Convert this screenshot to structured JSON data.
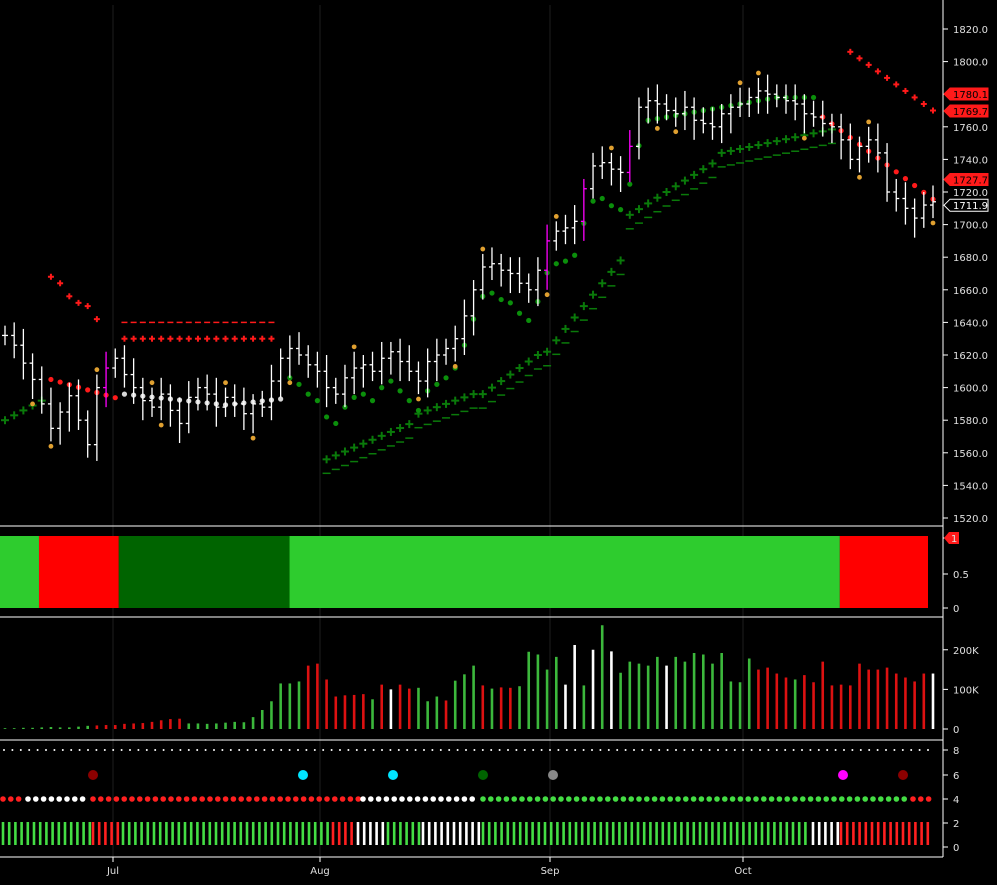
{
  "chart_data": [
    {
      "type": "ohlc",
      "panel": "price",
      "x_labels": [
        "Jul",
        "Aug",
        "Sep",
        "Oct"
      ],
      "y_ticks": [
        "1520.0",
        "1540.0",
        "1560.0",
        "1580.0",
        "1600.0",
        "1620.0",
        "1640.0",
        "1660.0",
        "1680.0",
        "1700.0",
        "1720.0",
        "1740.0",
        "1760.0",
        "1780.0",
        "1800.0",
        "1820.0"
      ],
      "ylim": [
        1512,
        1832
      ],
      "price_tags": [
        {
          "text": "1780.1",
          "value": 1780.1,
          "color": "#ff1a1a"
        },
        {
          "text": "1769.7",
          "value": 1769.7,
          "color": "#ff1a1a"
        },
        {
          "text": "1727.7",
          "value": 1727.7,
          "color": "#ff1a1a"
        },
        {
          "text": "1711.9",
          "value": 1711.9,
          "color": "#000000"
        }
      ],
      "colors": {
        "bar": "#ffffff",
        "ribbon_green": "#0a7a0a",
        "ribbon_red": "#ff1a1a",
        "highlight": "#ff00ff",
        "pivot": "#e0a030"
      },
      "closes": [
        1632,
        1626,
        1615,
        1605,
        1590,
        1575,
        1585,
        1595,
        1580,
        1565,
        1600,
        1612,
        1618,
        1608,
        1600,
        1592,
        1588,
        1596,
        1586,
        1578,
        1594,
        1600,
        1596,
        1588,
        1594,
        1590,
        1584,
        1590,
        1588,
        1604,
        1618,
        1624,
        1620,
        1614,
        1610,
        1600,
        1596,
        1606,
        1612,
        1614,
        1610,
        1618,
        1622,
        1616,
        1610,
        1604,
        1616,
        1620,
        1624,
        1630,
        1644,
        1660,
        1674,
        1676,
        1672,
        1670,
        1664,
        1660,
        1672,
        1690,
        1696,
        1698,
        1702,
        1722,
        1736,
        1738,
        1734,
        1732,
        1748,
        1772,
        1776,
        1774,
        1770,
        1768,
        1772,
        1764,
        1762,
        1760,
        1768,
        1772,
        1774,
        1778,
        1782,
        1780,
        1778,
        1776,
        1774,
        1768,
        1766,
        1762,
        1760,
        1752,
        1740,
        1748,
        1752,
        1744,
        1720,
        1716,
        1710,
        1704,
        1712,
        1714
      ]
    },
    {
      "type": "heatmap",
      "panel": "trend",
      "y_ticks": [
        "1",
        "0.5",
        "0"
      ],
      "segments": [
        {
          "start": 0.0,
          "end": 0.042,
          "color": "#2ecc2e"
        },
        {
          "start": 0.042,
          "end": 0.128,
          "color": "#ff0000"
        },
        {
          "start": 0.128,
          "end": 0.312,
          "color": "#006400"
        },
        {
          "start": 0.312,
          "end": 0.905,
          "color": "#2ecc2e"
        },
        {
          "start": 0.905,
          "end": 1.0,
          "color": "#ff0000"
        }
      ]
    },
    {
      "type": "bar",
      "panel": "volume",
      "y_ticks": [
        "200K",
        "100K",
        "0"
      ],
      "ylim": [
        0,
        260000
      ],
      "values": [
        2000,
        2000,
        3000,
        3000,
        4000,
        5000,
        4000,
        4000,
        6000,
        8000,
        9000,
        10000,
        10000,
        13000,
        14000,
        15000,
        18000,
        22000,
        25000,
        26000,
        14000,
        14000,
        13000,
        14000,
        16000,
        18000,
        17000,
        30000,
        48000,
        70000,
        115000,
        115000,
        120000,
        160000,
        165000,
        125000,
        82000,
        85000,
        86000,
        88000,
        75000,
        112000,
        100000,
        112000,
        102000,
        104000,
        70000,
        82000,
        72000,
        122000,
        138000,
        160000,
        110000,
        102000,
        105000,
        104000,
        108000,
        195000,
        188000,
        150000,
        182000,
        112000,
        212000,
        110000,
        200000,
        262000,
        196000,
        142000,
        170000,
        165000,
        160000,
        182000,
        160000,
        182000,
        170000,
        192000,
        188000,
        165000,
        192000,
        120000,
        118000,
        178000,
        150000,
        155000,
        140000,
        130000,
        125000,
        136000,
        118000,
        170000,
        110000,
        112000,
        110000,
        165000,
        150000,
        150000,
        155000,
        140000,
        130000,
        120000,
        140000,
        140000
      ],
      "colors": [
        "green",
        "green",
        "green",
        "green",
        "green",
        "green",
        "green",
        "green",
        "green",
        "green",
        "red",
        "red",
        "red",
        "red",
        "red",
        "red",
        "red",
        "red",
        "red",
        "red",
        "green",
        "green",
        "green",
        "green",
        "green",
        "green",
        "green",
        "green",
        "green",
        "green",
        "green",
        "green",
        "green",
        "red",
        "red",
        "red",
        "red",
        "red",
        "red",
        "red",
        "green",
        "red",
        "white",
        "red",
        "red",
        "green",
        "green",
        "green",
        "red",
        "green",
        "green",
        "green",
        "red",
        "green",
        "red",
        "red",
        "green",
        "green",
        "green",
        "green",
        "green",
        "white",
        "white",
        "green",
        "white",
        "green",
        "white",
        "green",
        "green",
        "green",
        "green",
        "green",
        "white",
        "green",
        "green",
        "green",
        "green",
        "green",
        "green",
        "green",
        "green",
        "green",
        "red",
        "red",
        "red",
        "red",
        "green",
        "red",
        "red",
        "red",
        "red",
        "red",
        "red",
        "red",
        "red",
        "red",
        "red",
        "red",
        "red",
        "red",
        "red",
        "white"
      ]
    },
    {
      "type": "scatter",
      "panel": "signals",
      "y_ticks": [
        "8",
        "6",
        "4",
        "2",
        "0"
      ],
      "ylim": [
        -1,
        9
      ],
      "row8_dotted": true,
      "row6_signals": [
        {
          "x": 93,
          "color": "#8b0000"
        },
        {
          "x": 303,
          "color": "#00e5ff"
        },
        {
          "x": 393,
          "color": "#00e5ff"
        },
        {
          "x": 483,
          "color": "#006400"
        },
        {
          "x": 553,
          "color": "#888888"
        },
        {
          "x": 843,
          "color": "#ff00ff"
        },
        {
          "x": 903,
          "color": "#8b0000"
        }
      ],
      "row4_segments": [
        {
          "from": 0,
          "to": 25,
          "color": "#ff2020"
        },
        {
          "from": 25,
          "to": 90,
          "color": "#ffffff"
        },
        {
          "from": 90,
          "to": 360,
          "color": "#ff2020"
        },
        {
          "from": 360,
          "to": 480,
          "color": "#ffffff"
        },
        {
          "from": 480,
          "to": 910,
          "color": "#44dd44"
        },
        {
          "from": 910,
          "to": 930,
          "color": "#ff2020"
        }
      ],
      "row2_segments": [
        {
          "from": 0,
          "to": 90,
          "color": "#44dd44"
        },
        {
          "from": 90,
          "to": 120,
          "color": "#ff2020"
        },
        {
          "from": 120,
          "to": 330,
          "color": "#44dd44"
        },
        {
          "from": 330,
          "to": 355,
          "color": "#ff2020"
        },
        {
          "from": 355,
          "to": 385,
          "color": "#ffffff"
        },
        {
          "from": 385,
          "to": 420,
          "color": "#44dd44"
        },
        {
          "from": 420,
          "to": 480,
          "color": "#ffffff"
        },
        {
          "from": 480,
          "to": 810,
          "color": "#44dd44"
        },
        {
          "from": 810,
          "to": 838,
          "color": "#ffffff"
        },
        {
          "from": 838,
          "to": 930,
          "color": "#ff2020"
        }
      ]
    }
  ]
}
